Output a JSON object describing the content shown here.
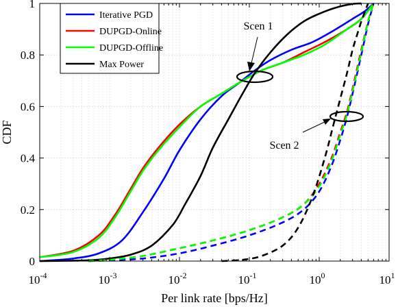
{
  "chart_data": {
    "type": "line",
    "xlabel": "Per link rate [bps/Hz]",
    "ylabel": "CDF",
    "xscale": "log",
    "xlim": [
      0.0001,
      10
    ],
    "ylim": [
      0,
      1
    ],
    "grid": true,
    "legend_position": "top-left",
    "x_tick_labels": [
      {
        "base": "10",
        "exp": "-4"
      },
      {
        "base": "10",
        "exp": "-3"
      },
      {
        "base": "10",
        "exp": "-2"
      },
      {
        "base": "10",
        "exp": "-1"
      },
      {
        "base": "10",
        "exp": "0"
      },
      {
        "base": "10",
        "exp": "1"
      }
    ],
    "y_ticks": [
      0,
      0.2,
      0.4,
      0.6,
      0.8,
      1
    ],
    "y_tick_labels": [
      "0",
      "0.2",
      "0.4",
      "0.6",
      "0.8",
      "1"
    ],
    "legend": [
      {
        "label": "Iterative PGD",
        "color": "#0000ff"
      },
      {
        "label": "DUPGD-Online",
        "color": "#ff0000"
      },
      {
        "label": "DUPGD-Offline",
        "color": "#00ff00"
      },
      {
        "label": "Max Power",
        "color": "#000000"
      }
    ],
    "annotations": [
      {
        "text": "Scen 1",
        "target": {
          "x": 0.12,
          "y": 0.72
        }
      },
      {
        "text": "Scen 2",
        "target": {
          "x": 2.2,
          "y": 0.56
        }
      }
    ],
    "series": [
      {
        "name": "Iterative PGD",
        "scenario": "Scen 1",
        "color": "#0000ff",
        "style": "solid",
        "x": [
          0.0001,
          0.0003,
          0.0007,
          0.0015,
          0.003,
          0.006,
          0.01,
          0.02,
          0.04,
          0.07,
          0.12,
          0.2,
          0.4,
          0.8,
          1.5,
          3,
          4.5,
          6
        ],
        "y": [
          0,
          0.01,
          0.03,
          0.08,
          0.19,
          0.32,
          0.43,
          0.55,
          0.64,
          0.69,
          0.74,
          0.78,
          0.82,
          0.85,
          0.89,
          0.94,
          0.97,
          1
        ]
      },
      {
        "name": "DUPGD-Online",
        "scenario": "Scen 1",
        "color": "#ff0000",
        "style": "solid",
        "x": [
          0.0001,
          0.0003,
          0.0007,
          0.0012,
          0.002,
          0.003,
          0.005,
          0.01,
          0.02,
          0.04,
          0.08,
          0.15,
          0.3,
          0.6,
          1.2,
          2.5,
          4,
          6
        ],
        "y": [
          0.015,
          0.04,
          0.1,
          0.18,
          0.28,
          0.36,
          0.44,
          0.53,
          0.6,
          0.65,
          0.7,
          0.74,
          0.77,
          0.81,
          0.85,
          0.9,
          0.94,
          1
        ]
      },
      {
        "name": "DUPGD-Offline",
        "scenario": "Scen 1",
        "color": "#00ff00",
        "style": "solid",
        "x": [
          0.0001,
          0.0003,
          0.0007,
          0.0012,
          0.002,
          0.003,
          0.005,
          0.01,
          0.02,
          0.04,
          0.08,
          0.15,
          0.3,
          0.6,
          1.2,
          2.5,
          4,
          6
        ],
        "y": [
          0.015,
          0.035,
          0.09,
          0.17,
          0.27,
          0.35,
          0.43,
          0.52,
          0.6,
          0.65,
          0.7,
          0.74,
          0.77,
          0.8,
          0.84,
          0.9,
          0.94,
          1
        ]
      },
      {
        "name": "Max Power",
        "scenario": "Scen 1",
        "color": "#000000",
        "style": "solid",
        "x": [
          0.0001,
          0.0005,
          0.001,
          0.002,
          0.004,
          0.008,
          0.012,
          0.02,
          0.03,
          0.05,
          0.08,
          0.12,
          0.2,
          0.35,
          0.6,
          1,
          1.8,
          3,
          4
        ],
        "y": [
          0,
          0.003,
          0.01,
          0.025,
          0.06,
          0.14,
          0.22,
          0.33,
          0.44,
          0.55,
          0.65,
          0.73,
          0.81,
          0.88,
          0.93,
          0.96,
          0.985,
          0.998,
          1
        ]
      },
      {
        "name": "Iterative PGD",
        "scenario": "Scen 2",
        "color": "#0000ff",
        "style": "dashed",
        "x": [
          0.0005,
          0.001,
          0.003,
          0.01,
          0.03,
          0.1,
          0.3,
          0.6,
          1,
          1.5,
          2,
          2.5,
          3,
          4,
          5,
          6
        ],
        "y": [
          0,
          0.003,
          0.01,
          0.03,
          0.06,
          0.1,
          0.15,
          0.2,
          0.27,
          0.37,
          0.47,
          0.56,
          0.65,
          0.8,
          0.92,
          1
        ]
      },
      {
        "name": "DUPGD-Online",
        "scenario": "Scen 2",
        "color": "#ff0000",
        "style": "dashed",
        "x": [
          0.0005,
          0.001,
          0.003,
          0.01,
          0.03,
          0.1,
          0.3,
          0.6,
          1,
          1.5,
          2,
          2.5,
          3,
          4,
          5,
          6
        ],
        "y": [
          0,
          0.005,
          0.02,
          0.05,
          0.08,
          0.12,
          0.17,
          0.22,
          0.3,
          0.4,
          0.5,
          0.58,
          0.67,
          0.82,
          0.93,
          1
        ]
      },
      {
        "name": "DUPGD-Offline",
        "scenario": "Scen 2",
        "color": "#00ff00",
        "style": "dashed",
        "x": [
          0.0005,
          0.001,
          0.003,
          0.01,
          0.03,
          0.1,
          0.3,
          0.6,
          1,
          1.5,
          2,
          2.5,
          3,
          4,
          5,
          6
        ],
        "y": [
          0,
          0.005,
          0.02,
          0.05,
          0.08,
          0.12,
          0.17,
          0.22,
          0.29,
          0.39,
          0.49,
          0.57,
          0.66,
          0.81,
          0.93,
          1
        ]
      },
      {
        "name": "Max Power",
        "scenario": "Scen 2",
        "color": "#000000",
        "style": "dashed",
        "x": [
          0.04,
          0.08,
          0.15,
          0.3,
          0.5,
          0.8,
          1.2,
          1.6,
          2,
          2.5,
          3,
          3.5,
          4,
          5
        ],
        "y": [
          0,
          0.005,
          0.02,
          0.06,
          0.13,
          0.25,
          0.4,
          0.53,
          0.63,
          0.73,
          0.82,
          0.88,
          0.93,
          1
        ]
      }
    ]
  }
}
